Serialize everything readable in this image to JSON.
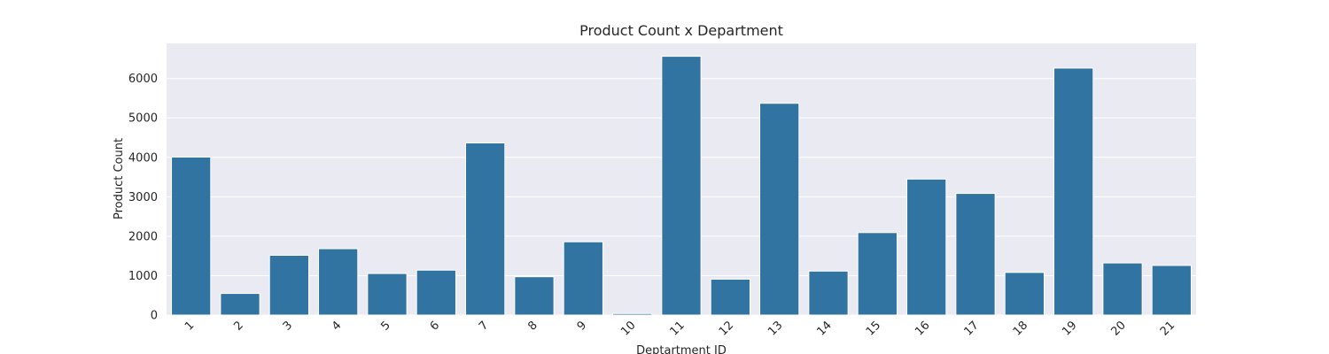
{
  "chart_data": {
    "type": "bar",
    "title": "Product Count x Department",
    "xlabel": "Deptartment ID",
    "ylabel": "Product Count",
    "categories": [
      "1",
      "2",
      "3",
      "4",
      "5",
      "6",
      "7",
      "8",
      "9",
      "10",
      "11",
      "12",
      "13",
      "14",
      "15",
      "16",
      "17",
      "18",
      "19",
      "20",
      "21"
    ],
    "values": [
      4007,
      548,
      1515,
      1683,
      1054,
      1139,
      4365,
      972,
      1858,
      38,
      6563,
      910,
      5371,
      1115,
      2092,
      3449,
      3085,
      1081,
      6264,
      1322,
      1258
    ],
    "yticks": [
      0,
      1000,
      2000,
      3000,
      4000,
      5000,
      6000
    ],
    "ylim": [
      0,
      6891
    ],
    "grid": true,
    "bar_color": "#3274a1",
    "plot_background": "#eaeaf2"
  }
}
